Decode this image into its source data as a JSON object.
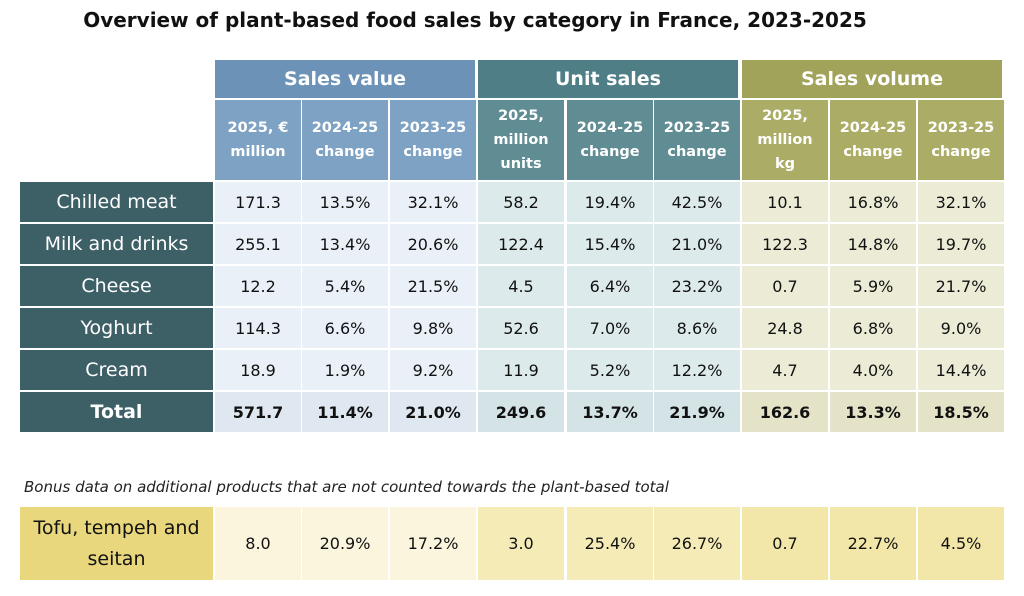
{
  "title": "Overview of plant-based food sales by category in France, 2023-2025",
  "groups": [
    "Sales value",
    "Unit sales",
    "Sales volume"
  ],
  "columns": [
    "2025, € million",
    "2024-25 change",
    "2023-25 change",
    "2025, million units",
    "2024-25 change",
    "2023-25 change",
    "2025, million kg",
    "2024-25 change",
    "2023-25 change"
  ],
  "rows": [
    [
      "Chilled meat",
      "171.3",
      "13.5%",
      "32.1%",
      "58.2",
      "19.4%",
      "42.5%",
      "10.1",
      "16.8%",
      "32.1%"
    ],
    [
      "Milk and drinks",
      "255.1",
      "13.4%",
      "20.6%",
      "122.4",
      "15.4%",
      "21.0%",
      "122.3",
      "14.8%",
      "19.7%"
    ],
    [
      "Cheese",
      "12.2",
      "5.4%",
      "21.5%",
      "4.5",
      "6.4%",
      "23.2%",
      "0.7",
      "5.9%",
      "21.7%"
    ],
    [
      "Yoghurt",
      "114.3",
      "6.6%",
      "9.8%",
      "52.6",
      "7.0%",
      "8.6%",
      "24.8",
      "6.8%",
      "9.0%"
    ],
    [
      "Cream",
      "18.9",
      "1.9%",
      "9.2%",
      "11.9",
      "5.2%",
      "12.2%",
      "4.7",
      "4.0%",
      "14.4%"
    ],
    [
      "Total",
      "571.7",
      "11.4%",
      "21.0%",
      "249.6",
      "13.7%",
      "21.9%",
      "162.6",
      "13.3%",
      "18.5%"
    ]
  ],
  "note": "Bonus data on additional products that are not counted towards the plant-based total",
  "bonus": [
    [
      "Tofu, tempeh and seitan",
      "8.0",
      "20.9%",
      "17.2%",
      "3.0",
      "25.4%",
      "26.7%",
      "0.7",
      "22.7%",
      "4.5%"
    ]
  ]
}
